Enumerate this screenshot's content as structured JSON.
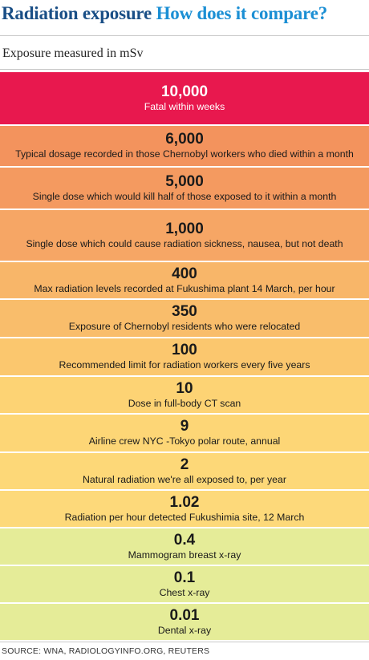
{
  "header": {
    "title_part1": "Radiation exposure",
    "title_part2": "How does it compare?",
    "subtitle": "Exposure measured in mSv"
  },
  "colors": {
    "title_dark": "#1a4f86",
    "title_light": "#1b8fd4"
  },
  "chart_data": {
    "type": "table",
    "unit": "mSv",
    "rows": [
      {
        "value": "10,000",
        "label": "Fatal within weeks",
        "color": "#e8184e"
      },
      {
        "value": "6,000",
        "label": "Typical dosage recorded in those Chernobyl workers who died within a month",
        "color": "#f3935d"
      },
      {
        "value": "5,000",
        "label": "Single dose which would kill half of those exposed to it within a month",
        "color": "#f49a60"
      },
      {
        "value": "1,000",
        "label": "Single dose which could cause radiation sickness, nausea, but not death",
        "color": "#f6a665"
      },
      {
        "value": "400",
        "label": "Max radiation levels recorded at Fukushima plant 14 March, per hour",
        "color": "#f8b669"
      },
      {
        "value": "350",
        "label": "Exposure of Chernobyl residents who were relocated",
        "color": "#f9bd6b"
      },
      {
        "value": "100",
        "label": "Recommended limit for radiation workers every five years",
        "color": "#fbc76e"
      },
      {
        "value": "10",
        "label": "Dose in full-body CT scan",
        "color": "#fdd374"
      },
      {
        "value": "9",
        "label": "Airline crew NYC -Tokyo polar route, annual",
        "color": "#fdd676"
      },
      {
        "value": "2",
        "label": "Natural radiation we're all exposed to, per year",
        "color": "#fdd878"
      },
      {
        "value": "1.02",
        "label": "Radiation per hour detected Fukushimia site, 12 March",
        "color": "#fdd97a"
      },
      {
        "value": "0.4",
        "label": "Mammogram breast x-ray",
        "color": "#e5ec98"
      },
      {
        "value": "0.1",
        "label": "Chest x-ray",
        "color": "#e5ec98"
      },
      {
        "value": "0.01",
        "label": "Dental x-ray",
        "color": "#e5ec98"
      }
    ]
  },
  "footer": {
    "source": "SOURCE: WNA, RADIOLOGYINFO.ORG, REUTERS"
  }
}
